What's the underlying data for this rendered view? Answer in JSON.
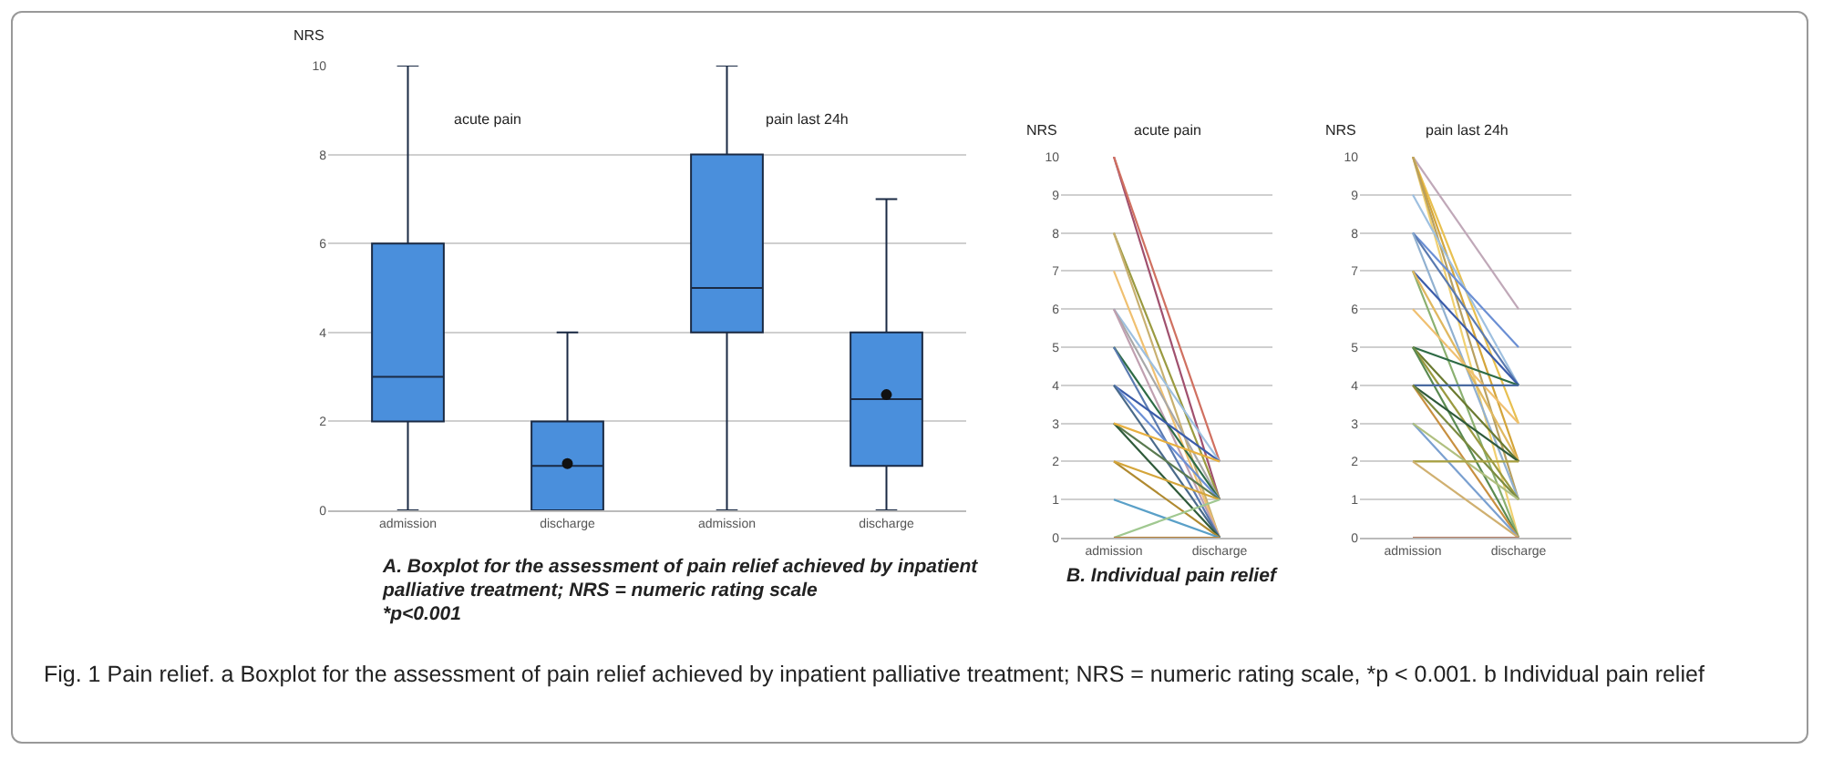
{
  "chart_data": [
    {
      "type": "box",
      "ylabel": "NRS",
      "categories": [
        "admission",
        "discharge",
        "admission",
        "discharge"
      ],
      "ylim": [
        0,
        10
      ],
      "yticks": [
        0,
        2,
        4,
        6,
        8,
        10
      ],
      "grid": "y",
      "series": [
        {
          "color": "#4a8fdc",
          "boxes": [
            {
              "low": 0,
              "q1": 2,
              "median": 3,
              "q3": 6,
              "high": 10
            },
            {
              "low": 0,
              "q1": 0,
              "median": 1,
              "q3": 2,
              "high": 4,
              "mean": 1.05
            },
            {
              "low": 0,
              "q1": 4,
              "median": 5,
              "q3": 8,
              "high": 10
            },
            {
              "low": 0,
              "q1": 1,
              "median": 2.5,
              "q3": 4,
              "high": 7,
              "mean": 2.6
            }
          ]
        }
      ],
      "annotations": [
        "acute pain",
        "pain last 24h",
        "A. Boxplot for the assessment of pain relief achieved by inpatient palliative treatment; NRS = numeric rating scale",
        "*p<0.001"
      ]
    },
    {
      "type": "line",
      "title": "acute pain",
      "ylabel": "NRS",
      "categories": [
        "admission",
        "discharge"
      ],
      "ylim": [
        0,
        10
      ],
      "yticks": [
        0,
        1,
        2,
        3,
        4,
        5,
        6,
        7,
        8,
        9,
        10
      ],
      "grid": "y",
      "series": [
        {
          "color": "#a0506e",
          "values": [
            10,
            1
          ]
        },
        {
          "color": "#d07060",
          "values": [
            10,
            2
          ]
        },
        {
          "color": "#9a9a40",
          "values": [
            8,
            1
          ]
        },
        {
          "color": "#c8b070",
          "values": [
            8,
            0
          ]
        },
        {
          "color": "#f0c070",
          "values": [
            7,
            0
          ]
        },
        {
          "color": "#9ec0e0",
          "values": [
            6,
            2
          ]
        },
        {
          "color": "#a8a8a8",
          "values": [
            6,
            1
          ]
        },
        {
          "color": "#c0a0b0",
          "values": [
            6,
            0
          ]
        },
        {
          "color": "#2e6b45",
          "values": [
            5,
            1
          ]
        },
        {
          "color": "#5a7ab0",
          "values": [
            5,
            0
          ]
        },
        {
          "color": "#3b5caa",
          "values": [
            4,
            2
          ]
        },
        {
          "color": "#6b8fd4",
          "values": [
            4,
            1
          ]
        },
        {
          "color": "#4a6a8a",
          "values": [
            4,
            0
          ]
        },
        {
          "color": "#5a7a50",
          "values": [
            3,
            1
          ]
        },
        {
          "color": "#2f5a3a",
          "values": [
            3,
            0
          ]
        },
        {
          "color": "#e8b040",
          "values": [
            3,
            2
          ]
        },
        {
          "color": "#b08a30",
          "values": [
            2,
            0
          ]
        },
        {
          "color": "#d4a53a",
          "values": [
            2,
            1
          ]
        },
        {
          "color": "#5aa0c8",
          "values": [
            1,
            0
          ]
        },
        {
          "color": "#a0c890",
          "values": [
            0,
            1
          ]
        },
        {
          "color": "#b07a30",
          "values": [
            0,
            0
          ]
        }
      ],
      "annotations": [
        "B. Individual pain relief"
      ]
    },
    {
      "type": "line",
      "title": "pain last 24h",
      "ylabel": "NRS",
      "categories": [
        "admission",
        "discharge"
      ],
      "ylim": [
        0,
        10
      ],
      "yticks": [
        0,
        1,
        2,
        3,
        4,
        5,
        6,
        7,
        8,
        9,
        10
      ],
      "grid": "y",
      "series": [
        {
          "color": "#c0a8b8",
          "values": [
            10,
            6
          ]
        },
        {
          "color": "#e8c050",
          "values": [
            10,
            3
          ]
        },
        {
          "color": "#d4a53a",
          "values": [
            10,
            2
          ]
        },
        {
          "color": "#f0d070",
          "values": [
            10,
            0
          ]
        },
        {
          "color": "#b8a060",
          "values": [
            10,
            1
          ]
        },
        {
          "color": "#9ec0e0",
          "values": [
            9,
            4
          ]
        },
        {
          "color": "#6b8fd4",
          "values": [
            8,
            5
          ]
        },
        {
          "color": "#5a7ab0",
          "values": [
            8,
            4
          ]
        },
        {
          "color": "#90b0d0",
          "values": [
            8,
            1
          ]
        },
        {
          "color": "#3b5caa",
          "values": [
            7,
            4
          ]
        },
        {
          "color": "#8ab070",
          "values": [
            7,
            0
          ]
        },
        {
          "color": "#e0b860",
          "values": [
            7,
            2
          ]
        },
        {
          "color": "#f0c070",
          "values": [
            6,
            3
          ]
        },
        {
          "color": "#2e6b45",
          "values": [
            5,
            4
          ]
        },
        {
          "color": "#6a7a30",
          "values": [
            5,
            2
          ]
        },
        {
          "color": "#9a9a40",
          "values": [
            5,
            1
          ]
        },
        {
          "color": "#5a8a50",
          "values": [
            5,
            0
          ]
        },
        {
          "color": "#4a6aa0",
          "values": [
            4,
            4
          ]
        },
        {
          "color": "#2f5a3a",
          "values": [
            4,
            2
          ]
        },
        {
          "color": "#c89040",
          "values": [
            4,
            0
          ]
        },
        {
          "color": "#7a8a40",
          "values": [
            4,
            1
          ]
        },
        {
          "color": "#7aa0d0",
          "values": [
            3,
            0
          ]
        },
        {
          "color": "#b0c080",
          "values": [
            3,
            1
          ]
        },
        {
          "color": "#a8a040",
          "values": [
            2,
            2
          ]
        },
        {
          "color": "#d0b070",
          "values": [
            2,
            0
          ]
        },
        {
          "color": "#b07a60",
          "values": [
            0,
            0
          ]
        }
      ]
    },
    {
      "type": "other",
      "annotations": [
        "Fig. 1 Pain relief. a Boxplot for the assessment of pain relief achieved by inpatient palliative treatment; NRS = numeric rating scale, *p < 0.001. b Individual pain relief"
      ]
    }
  ]
}
